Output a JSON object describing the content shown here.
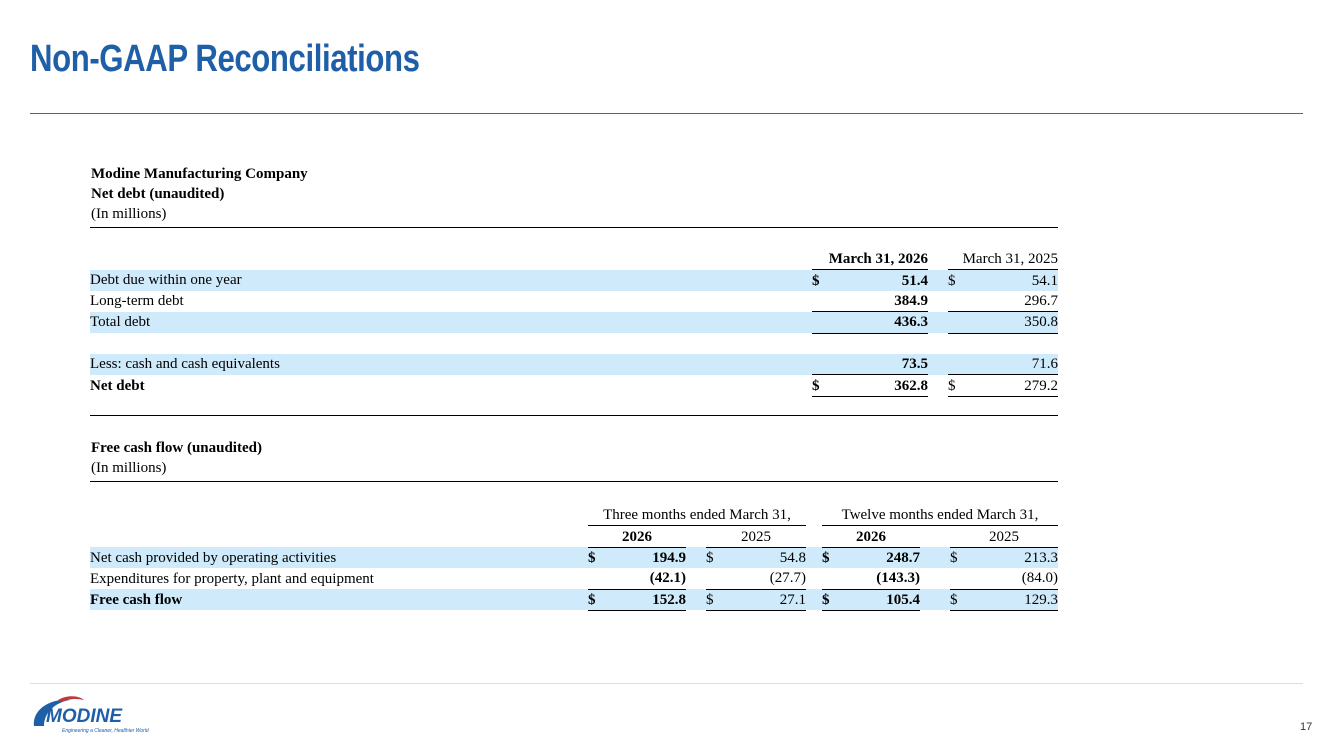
{
  "header": {
    "title": "Non-GAAP Reconciliations"
  },
  "net_debt": {
    "company": "Modine Manufacturing Company",
    "title": "Net debt (unaudited)",
    "units": "(In millions)",
    "columns": [
      "March 31, 2026",
      "March 31, 2025"
    ],
    "rows": [
      {
        "label": "Debt due within one year",
        "symbols": [
          "$",
          "$"
        ],
        "values": [
          "51.4",
          "54.1"
        ]
      },
      {
        "label": "Long-term debt",
        "values": [
          "384.9",
          "296.7"
        ]
      },
      {
        "label": "Total debt",
        "values": [
          "436.3",
          "350.8"
        ]
      },
      {
        "label": "Less: cash and cash equivalents",
        "values": [
          "73.5",
          "71.6"
        ]
      },
      {
        "label": "Net debt",
        "symbols": [
          "$",
          "$"
        ],
        "values": [
          "362.8",
          "279.2"
        ]
      }
    ]
  },
  "free_cash_flow": {
    "title": "Free cash flow (unaudited)",
    "units": "(In millions)",
    "groups": [
      "Three months ended March 31,",
      "Twelve months ended March 31,"
    ],
    "columns": [
      "2026",
      "2025",
      "2026",
      "2025"
    ],
    "rows": [
      {
        "label": "Net cash provided by operating activities",
        "symbols": [
          "$",
          "$",
          "$",
          "$"
        ],
        "values": [
          "194.9",
          "54.8",
          "248.7",
          "213.3"
        ]
      },
      {
        "label": "Expenditures for property, plant and equipment",
        "values": [
          "(42.1)",
          "(27.7)",
          "(143.3)",
          "(84.0)"
        ]
      },
      {
        "label": "Free cash flow",
        "symbols": [
          "$",
          "$",
          "$",
          "$"
        ],
        "values": [
          "152.8",
          "27.1",
          "105.4",
          "129.3"
        ]
      }
    ]
  },
  "footer": {
    "logo": "MODINE",
    "tagline": "Engineering a Cleaner, Healthier World",
    "page": "17"
  }
}
